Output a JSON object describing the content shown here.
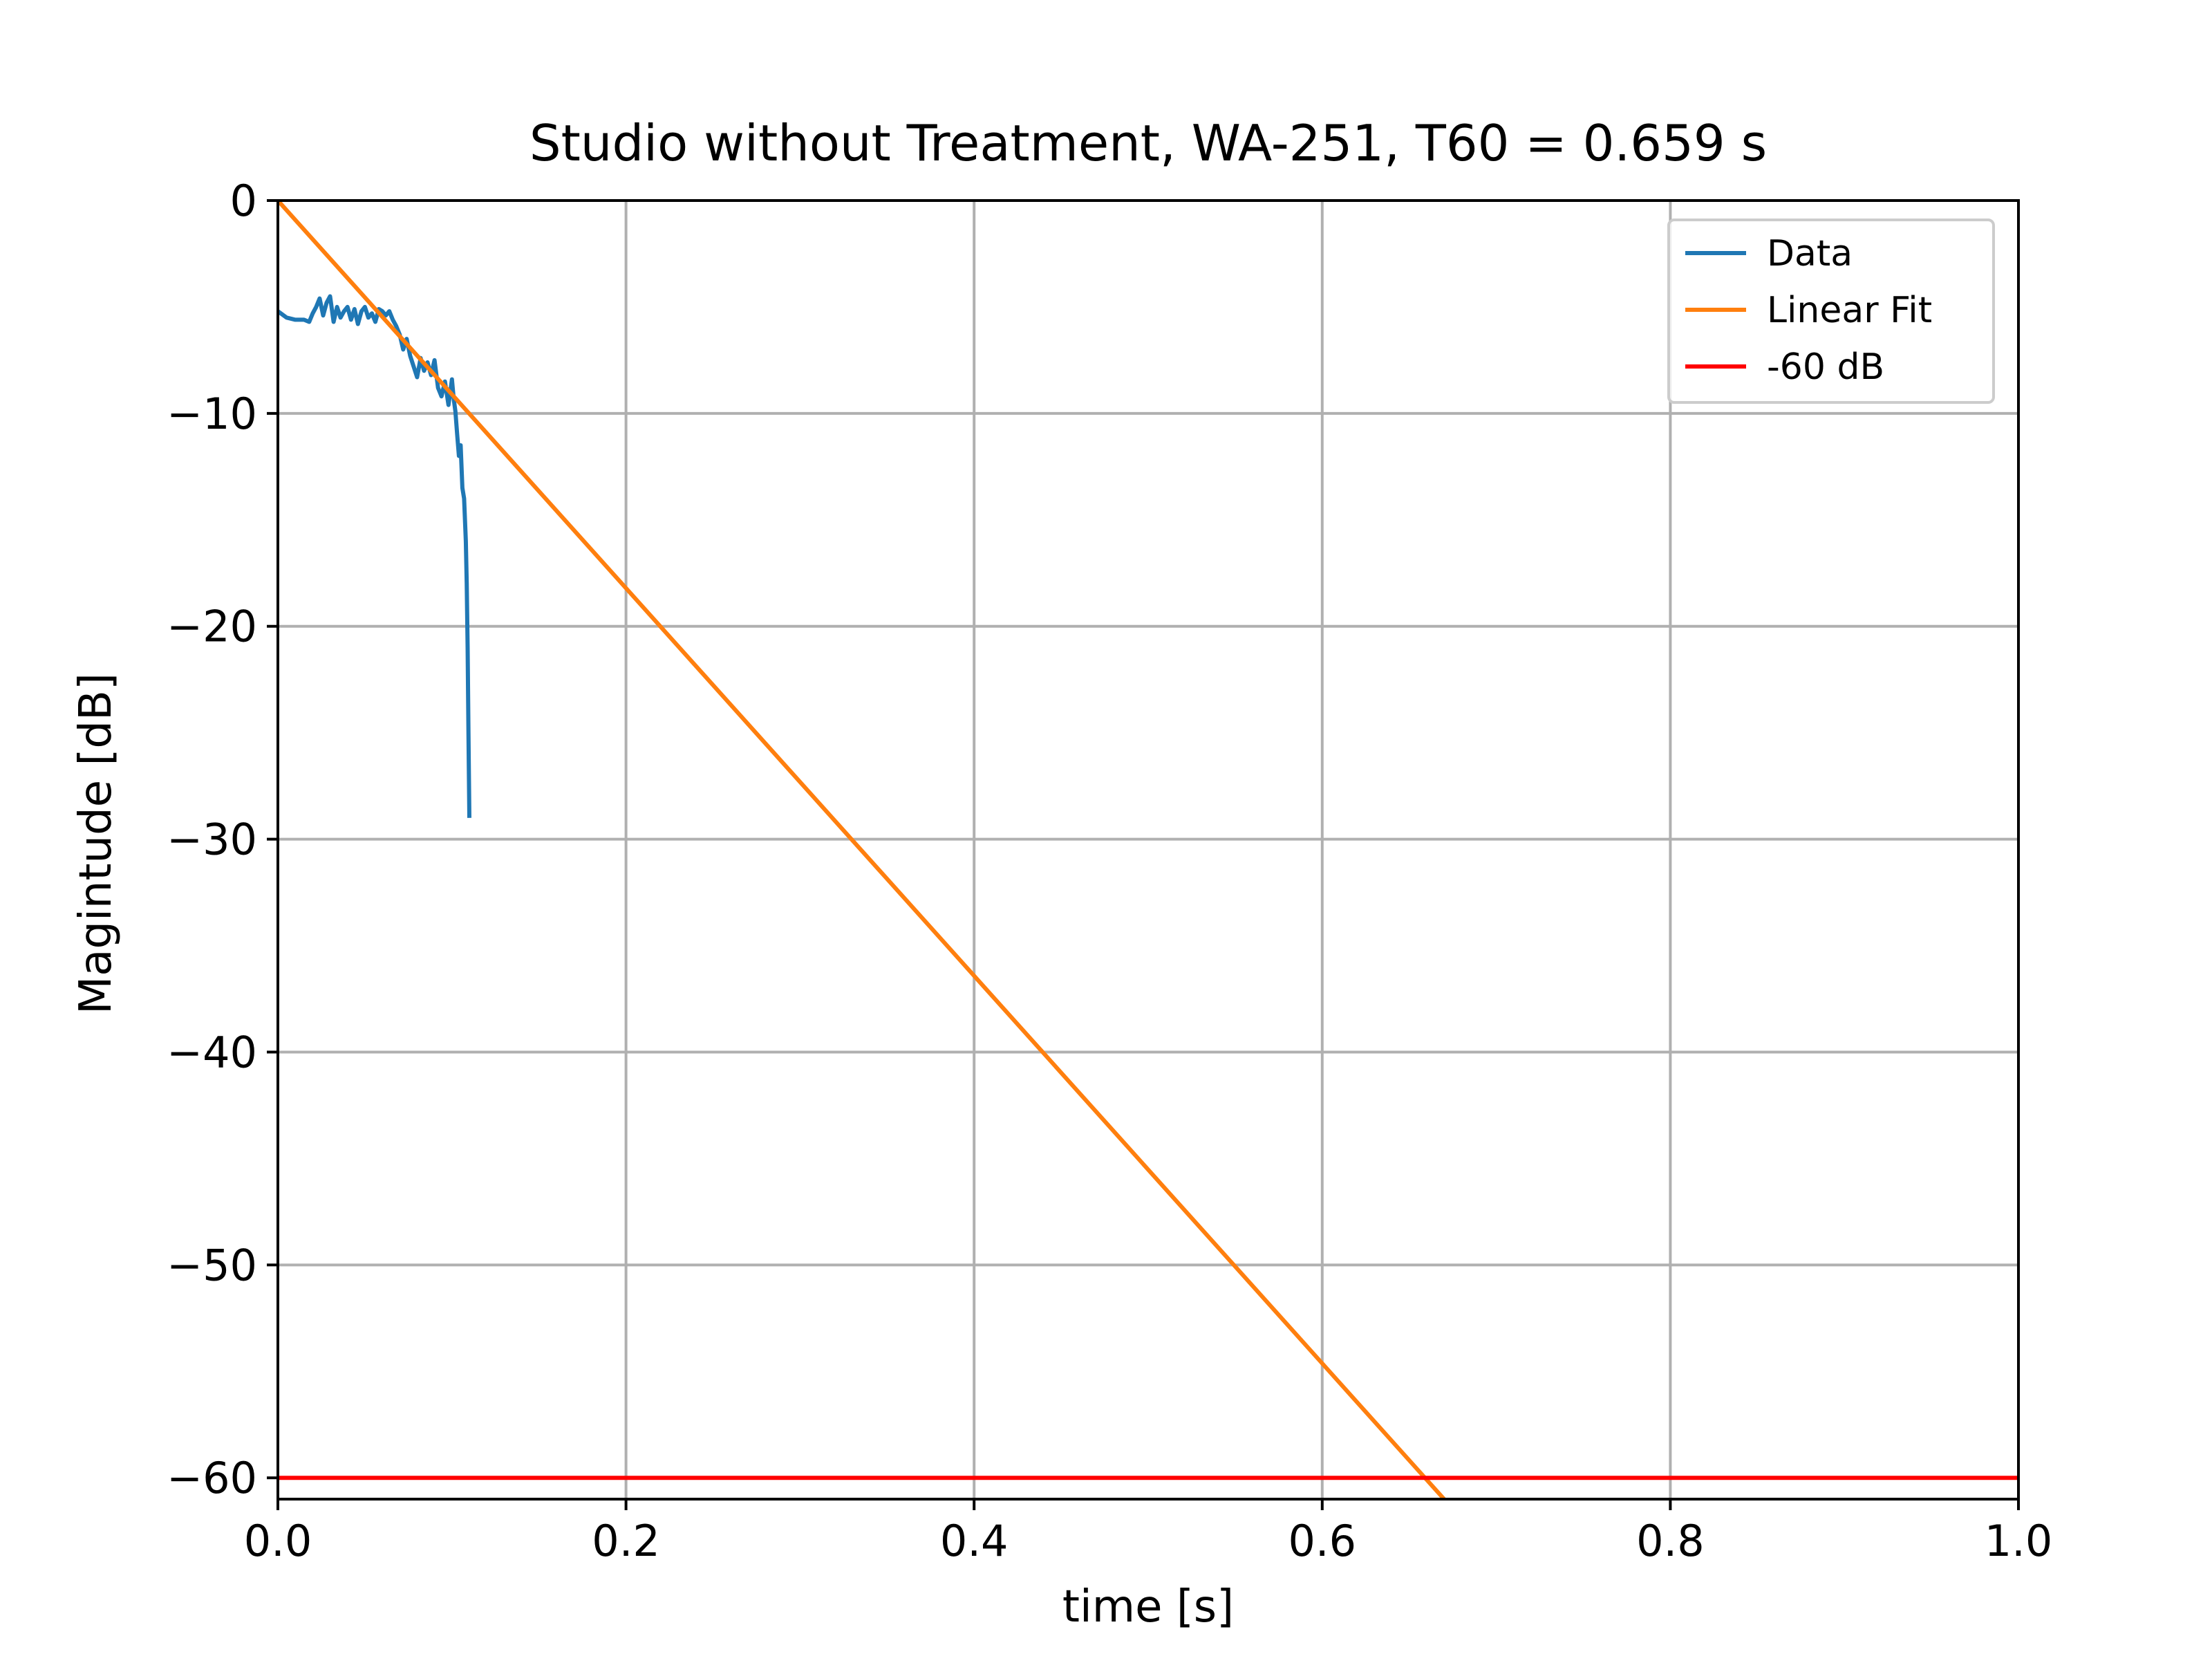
{
  "chart_data": {
    "type": "line",
    "title": "Studio without Treatment, WA-251, T60 = 0.659 s",
    "xlabel": "time [s]",
    "ylabel": "Magintude [dB]",
    "xlim": [
      0.0,
      1.0
    ],
    "ylim": [
      -61,
      0
    ],
    "xticks": [
      0.0,
      0.2,
      0.4,
      0.6,
      0.8,
      1.0
    ],
    "xtick_labels": [
      "0.0",
      "0.2",
      "0.4",
      "0.6",
      "0.8",
      "1.0"
    ],
    "yticks": [
      0,
      -10,
      -20,
      -30,
      -40,
      -50,
      -60
    ],
    "ytick_labels": [
      "0",
      "−10",
      "−20",
      "−30",
      "−40",
      "−50",
      "−60"
    ],
    "grid": true,
    "legend_position": "top-right",
    "series": [
      {
        "name": "Data",
        "color": "#1f77b4",
        "x": [
          0.0,
          0.005,
          0.01,
          0.015,
          0.018,
          0.02,
          0.022,
          0.024,
          0.026,
          0.028,
          0.03,
          0.032,
          0.034,
          0.036,
          0.038,
          0.04,
          0.042,
          0.044,
          0.046,
          0.048,
          0.05,
          0.052,
          0.054,
          0.056,
          0.058,
          0.06,
          0.062,
          0.064,
          0.066,
          0.068,
          0.07,
          0.072,
          0.074,
          0.076,
          0.078,
          0.08,
          0.082,
          0.084,
          0.086,
          0.088,
          0.09,
          0.092,
          0.094,
          0.096,
          0.098,
          0.1,
          0.101,
          0.102,
          0.103,
          0.104,
          0.105,
          0.106,
          0.107,
          0.108,
          0.1085,
          0.109,
          0.1095,
          0.11
        ],
        "y": [
          -5.2,
          -5.5,
          -5.6,
          -5.6,
          -5.7,
          -5.3,
          -5.0,
          -4.6,
          -5.4,
          -4.8,
          -4.5,
          -5.7,
          -5.0,
          -5.5,
          -5.2,
          -5.0,
          -5.6,
          -5.1,
          -5.8,
          -5.2,
          -5.0,
          -5.5,
          -5.3,
          -5.7,
          -5.1,
          -5.2,
          -5.4,
          -5.2,
          -5.6,
          -5.9,
          -6.3,
          -7.0,
          -6.5,
          -7.3,
          -7.8,
          -8.3,
          -7.4,
          -8.0,
          -7.6,
          -8.2,
          -7.5,
          -8.8,
          -9.2,
          -8.5,
          -9.6,
          -8.4,
          -9.3,
          -9.9,
          -11.0,
          -12.0,
          -11.5,
          -13.5,
          -14.0,
          -16.0,
          -18.0,
          -21.0,
          -25.0,
          -29.0
        ]
      },
      {
        "name": "Linear Fit",
        "color": "#ff7f0e",
        "x": [
          0.0,
          0.67
        ],
        "y": [
          0.0,
          -61.0
        ]
      },
      {
        "name": "-60 dB",
        "color": "#ff0000",
        "x": [
          0.0,
          1.0
        ],
        "y": [
          -60.0,
          -60.0
        ]
      }
    ]
  }
}
